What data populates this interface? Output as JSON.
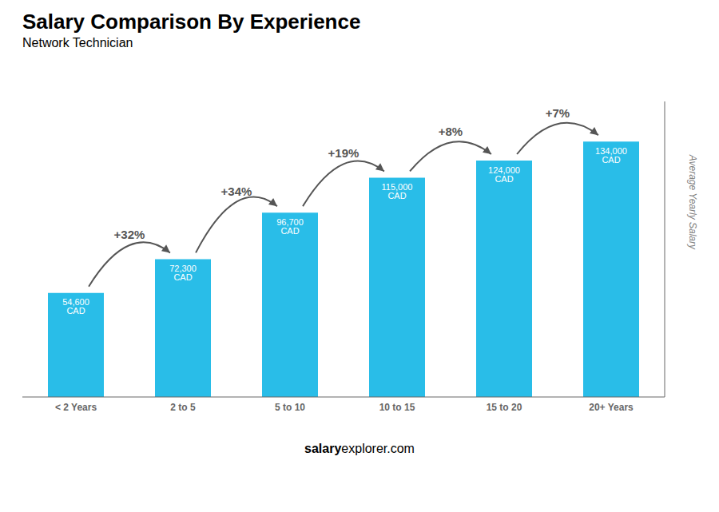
{
  "chart_data": {
    "type": "bar",
    "title": "Salary Comparison By Experience",
    "subtitle": "Network Technician",
    "categories": [
      "< 2 Years",
      "2 to 5",
      "5 to 10",
      "10 to 15",
      "15 to 20",
      "20+ Years"
    ],
    "values": [
      54600,
      72300,
      96700,
      115000,
      124000,
      134000
    ],
    "value_labels": [
      "54,600 CAD",
      "72,300 CAD",
      "96,700 CAD",
      "115,000 CAD",
      "124,000 CAD",
      "134,000 CAD"
    ],
    "data_labels": true,
    "annotations": [
      "+32%",
      "+34%",
      "+19%",
      "+8%",
      "+7%"
    ],
    "ylabel": "Average Yearly Salary",
    "ylim": [
      0,
      155000
    ],
    "tick_labels": "x",
    "grid": false,
    "color": "#29bde8",
    "footer": [
      "salary",
      "explorer.com"
    ]
  }
}
